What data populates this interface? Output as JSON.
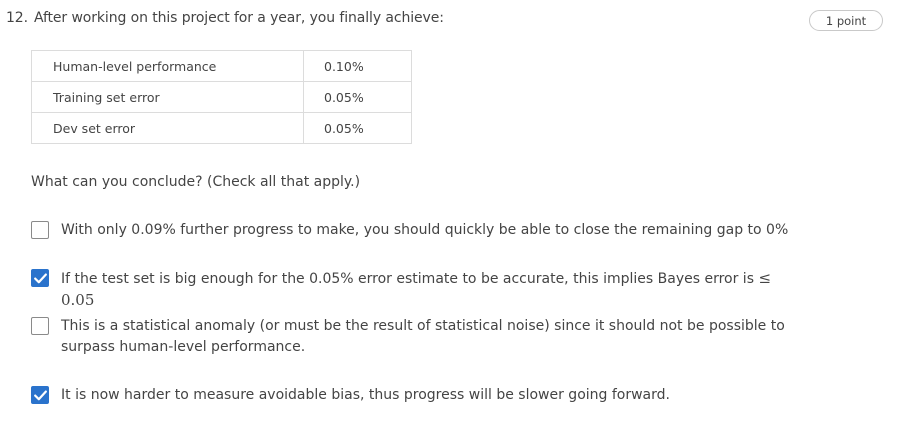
{
  "question": {
    "number": "12.",
    "text": "After working on this project for a year, you finally achieve:",
    "points": "1 point"
  },
  "results_table": {
    "rows": [
      {
        "metric": "Human-level performance",
        "value": "0.10%"
      },
      {
        "metric": "Training set error",
        "value": "0.05%"
      },
      {
        "metric": "Dev set error",
        "value": "0.05%"
      }
    ]
  },
  "prompt": "What can you conclude? (Check all that apply.)",
  "options": [
    {
      "text": "With only 0.09% further progress to make, you should quickly be able to close the remaining gap to 0%",
      "checked": false
    },
    {
      "text": "If the test set is big enough for the 0.05% error estimate to be accurate, this implies Bayes error is ",
      "math": "≤ 0.05",
      "checked": true
    },
    {
      "text": "This is a statistical anomaly (or must be the result of statistical noise) since it should not be possible to surpass human-level performance.",
      "checked": false
    },
    {
      "text": "It is now harder to measure avoidable bias, thus progress will be slower going forward.",
      "checked": true
    }
  ],
  "colors": {
    "checkbox_checked": "#2a73cc",
    "checkbox_border": "#8a8a8a",
    "table_border": "#dcdcdc"
  },
  "icons": {
    "checked": "checkmark-icon"
  }
}
